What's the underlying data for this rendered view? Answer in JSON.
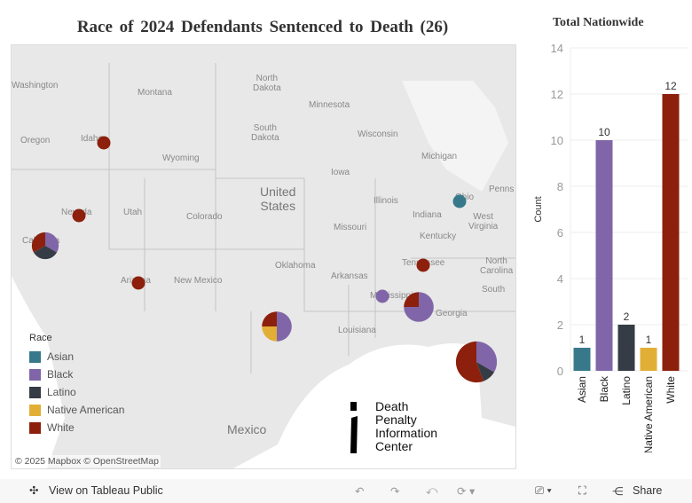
{
  "title": "Race of 2024 Defendants Sentenced to Death (26)",
  "colors": {
    "Asian": "#37798a",
    "Black": "#8066a8",
    "Latino": "#363c45",
    "Native American": "#e2af36",
    "White": "#8c200c"
  },
  "map": {
    "labels": [
      {
        "t": "Washington"
      },
      {
        "t": "Montana"
      },
      {
        "t": "North\nDakota"
      },
      {
        "t": "Minnesota"
      },
      {
        "t": "Oregon"
      },
      {
        "t": "Idaho"
      },
      {
        "t": "South\nDakota"
      },
      {
        "t": "Wisconsin"
      },
      {
        "t": "Michigan"
      },
      {
        "t": "Wyoming"
      },
      {
        "t": "Iowa"
      },
      {
        "t": "Nevada"
      },
      {
        "t": "Utah"
      },
      {
        "t": "Colorado"
      },
      {
        "t": "Illinois"
      },
      {
        "t": "Indiana"
      },
      {
        "t": "Ohio"
      },
      {
        "t": "Penns"
      },
      {
        "t": "California"
      },
      {
        "t": "Missouri"
      },
      {
        "t": "Kentucky"
      },
      {
        "t": "West\nVirginia"
      },
      {
        "t": "Oklahoma"
      },
      {
        "t": "Tennessee"
      },
      {
        "t": "North\nCarolina"
      },
      {
        "t": "Arizona"
      },
      {
        "t": "New Mexico"
      },
      {
        "t": "Arkansas"
      },
      {
        "t": "Mississippi"
      },
      {
        "t": "South"
      },
      {
        "t": "Georgia"
      },
      {
        "t": "Louisiana"
      },
      {
        "t": "Mexico"
      },
      {
        "t": "United\nStates"
      }
    ],
    "pies": [
      {
        "state": "California",
        "counts": {
          "Black": 1,
          "Latino": 1,
          "White": 1
        }
      },
      {
        "state": "Idaho",
        "counts": {
          "White": 1
        }
      },
      {
        "state": "Nevada",
        "counts": {
          "White": 1
        }
      },
      {
        "state": "Arizona",
        "counts": {
          "White": 1
        }
      },
      {
        "state": "Ohio",
        "counts": {
          "Asian": 1
        }
      },
      {
        "state": "Tennessee",
        "counts": {
          "White": 1
        }
      },
      {
        "state": "Mississippi",
        "counts": {
          "Black": 1
        }
      },
      {
        "state": "Alabama",
        "counts": {
          "Black": 3,
          "White": 1
        }
      },
      {
        "state": "Texas",
        "counts": {
          "Black": 2,
          "Native American": 1,
          "White": 1
        }
      },
      {
        "state": "Florida",
        "counts": {
          "Black": 3,
          "Latino": 1,
          "White": 5
        }
      }
    ],
    "attribution": "© 2025 Mapbox © OpenStreetMap",
    "logo": [
      "Death",
      "Penalty",
      "Information",
      "Center"
    ]
  },
  "legend": {
    "title": "Race",
    "items": [
      "Asian",
      "Black",
      "Latino",
      "Native American",
      "White"
    ]
  },
  "chart_data": {
    "type": "bar",
    "title": "Total Nationwide",
    "ylabel": "Count",
    "xlabel": "",
    "categories": [
      "Asian",
      "Black",
      "Latino",
      "Native American",
      "White"
    ],
    "values": [
      1,
      10,
      2,
      1,
      12
    ],
    "ylim": [
      0,
      14
    ],
    "yticks": [
      0,
      2,
      4,
      6,
      8,
      10,
      12,
      14
    ],
    "grid": true
  },
  "toolbar": {
    "view": "View on Tableau Public",
    "share": "Share"
  }
}
